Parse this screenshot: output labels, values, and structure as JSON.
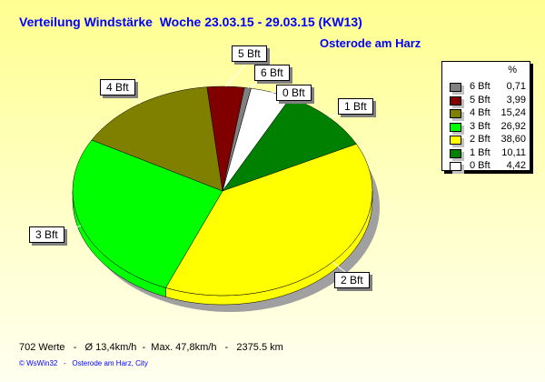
{
  "title": "Verteilung Windstärke  Woche 23.03.15 - 29.03.15 (KW13)",
  "subtitle": "Osterode am Harz",
  "footer": "702 Werte   -   Ø 13,4km/h  -  Max. 47,8km/h   -   2375.5 km",
  "copyright": "© WsWin32   -   Osterode am Harz, City",
  "chart_data": {
    "type": "pie",
    "title": "Verteilung Windstärke  Woche 23.03.15 - 29.03.15 (KW13)",
    "legend_header": "%",
    "legend_position": "right",
    "slices": [
      {
        "label": "0 Bft",
        "value": 4.42,
        "color": "#ffffff"
      },
      {
        "label": "1 Bft",
        "value": 10.11,
        "color": "#008000"
      },
      {
        "label": "2 Bft",
        "value": 38.6,
        "color": "#ffff00"
      },
      {
        "label": "3 Bft",
        "value": 26.92,
        "color": "#00ff00"
      },
      {
        "label": "4 Bft",
        "value": 15.24,
        "color": "#808000"
      },
      {
        "label": "5 Bft",
        "value": 3.99,
        "color": "#800000"
      },
      {
        "label": "6 Bft",
        "value": 0.71,
        "color": "#808080"
      }
    ],
    "legend_entries": [
      {
        "label": "6 Bft",
        "value": "0,71",
        "color": "#808080"
      },
      {
        "label": "5 Bft",
        "value": "3,99",
        "color": "#800000"
      },
      {
        "label": "4 Bft",
        "value": "15,24",
        "color": "#808000"
      },
      {
        "label": "3 Bft",
        "value": "26,92",
        "color": "#00ff00"
      },
      {
        "label": "2 Bft",
        "value": "38,60",
        "color": "#ffff00"
      },
      {
        "label": "1 Bft",
        "value": "10,11",
        "color": "#008000"
      },
      {
        "label": "0 Bft",
        "value": "4,42",
        "color": "#ffffff"
      }
    ]
  }
}
